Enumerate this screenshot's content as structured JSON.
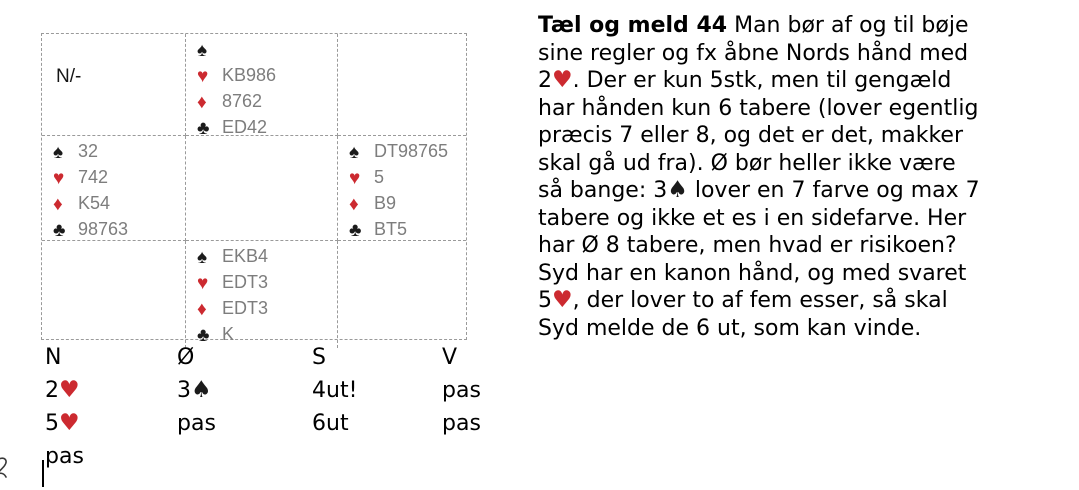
{
  "symbols": {
    "spade": "♠",
    "heart": "♥",
    "diamond": "♦",
    "club": "♣"
  },
  "colors": {
    "red_suit": "#cc2a30",
    "black_suit": "#1b1b1b",
    "card_text": "#7d7d7d",
    "grid_border": "#9a9a9a",
    "text": "#000000"
  },
  "diagram": {
    "dealer_vul": "N/-",
    "hands": {
      "north": {
        "spades": "",
        "hearts": "KB986",
        "diamonds": "8762",
        "clubs": "ED42"
      },
      "west": {
        "spades": "32",
        "hearts": "742",
        "diamonds": "K54",
        "clubs": "98763"
      },
      "east": {
        "spades": "DT98765",
        "hearts": "5",
        "diamonds": "B9",
        "clubs": "BT5"
      },
      "south": {
        "spades": "EKB4",
        "hearts": "EDT3",
        "diamonds": "EDT3",
        "clubs": "K"
      }
    }
  },
  "bidding": {
    "headers": [
      "N",
      "Ø",
      "S",
      "V"
    ],
    "rows": [
      [
        "2♥",
        "3♠",
        "4ut!",
        "pas"
      ],
      [
        "5♥",
        "pas",
        "6ut",
        "pas"
      ],
      [
        "pas",
        "",
        "",
        ""
      ]
    ]
  },
  "article": {
    "title": "Tæl og meld 44",
    "lines": [
      " Man bør af og til bøje",
      "sine regler og fx åbne Nords hånd med",
      "2♥. Der er kun 5stk, men til gengæld",
      "har hånden kun 6 tabere (lover egentlig",
      "præcis 7 eller 8, og det er det, makker",
      "skal gå ud fra). Ø bør heller ikke være",
      "så bange: 3♠ lover en 7 farve og max 7",
      "tabere og ikke et es i en sidefarve. Her",
      "har Ø 8 tabere, men hvad er risikoen?",
      "Syd har en kanon hånd, og med svaret",
      "5♥, der lover to af fem esser, så skal",
      "Syd melde de 6 ut, som kan vinde."
    ]
  }
}
